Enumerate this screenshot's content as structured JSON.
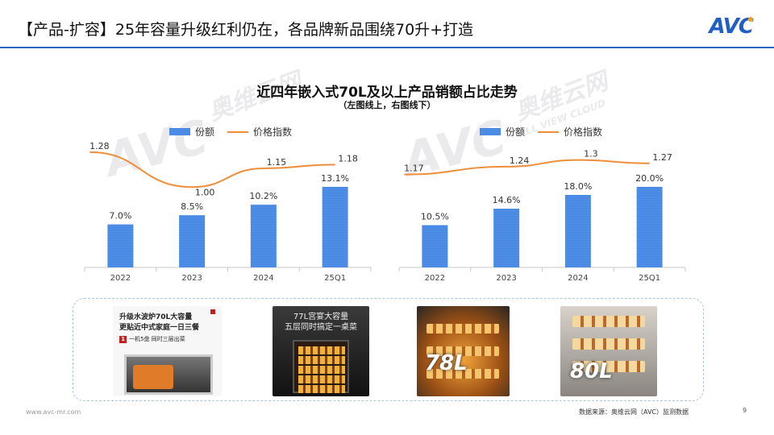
{
  "header": {
    "title": "【产品-扩容】25年容量升级红利仍在，各品牌新品围绕70升+打造",
    "logo": "AVC"
  },
  "chart_title": "近四年嵌入式70L及以上产品销额占比走势",
  "chart_subtitle": "（左图线上，右图线下）",
  "legend": {
    "bar": "份额",
    "line": "价格指数"
  },
  "colors": {
    "bar": "#4a8be6",
    "line": "#ef8e3a",
    "accent": "#2a63c9"
  },
  "watermark": {
    "cn": "奥维云网",
    "en": "ALL VIEW CLOUD"
  },
  "chart_data": [
    {
      "type": "bar",
      "categories": [
        "2022",
        "2023",
        "2024",
        "25Q1"
      ],
      "series": [
        {
          "name": "份额",
          "type": "bar",
          "values": [
            7.0,
            8.5,
            10.2,
            13.1
          ],
          "labels": [
            "7.0%",
            "8.5%",
            "10.2%",
            "13.1%"
          ]
        },
        {
          "name": "价格指数",
          "type": "line",
          "values": [
            1.28,
            1.0,
            1.15,
            1.18
          ],
          "labels": [
            "1.28",
            "1.00",
            "1.15",
            "1.18"
          ]
        }
      ],
      "bar_max": 13.1,
      "line_range": [
        0.95,
        1.35
      ]
    },
    {
      "type": "bar",
      "categories": [
        "2022",
        "2023",
        "2024",
        "25Q1"
      ],
      "series": [
        {
          "name": "份额",
          "type": "bar",
          "values": [
            10.5,
            14.6,
            18.0,
            20.0
          ],
          "labels": [
            "10.5%",
            "14.6%",
            "18.0%",
            "20.0%"
          ]
        },
        {
          "name": "价格指数",
          "type": "line",
          "values": [
            1.17,
            1.24,
            1.3,
            1.27
          ],
          "labels": [
            "1.17",
            "1.24",
            "1.3",
            "1.27"
          ]
        }
      ],
      "bar_max": 20.0,
      "line_range": [
        1.0,
        1.45
      ]
    }
  ],
  "products": {
    "p1_title1": "升级水波炉70L大容量",
    "p1_title2": "更贴近中式家庭一日三餐",
    "p1_badge_num": "1",
    "p1_badge_text": "一机5盘  同时三层出菜",
    "p2_title1": "77L宫宴大容量",
    "p2_title2": "五层同时搞定一桌菜",
    "p3_label": "78L",
    "p4_label": "80L"
  },
  "footer": {
    "url": "www.avc-mr.com",
    "source": "数据来源：奥维云网（AVC）监测数据",
    "page": "9"
  }
}
